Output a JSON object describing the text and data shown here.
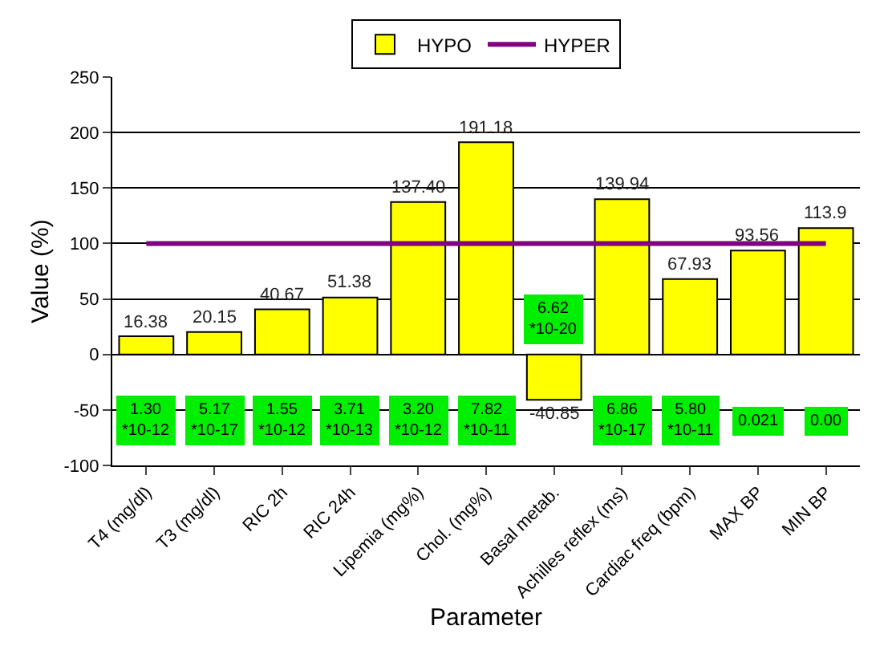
{
  "chart_data": {
    "type": "bar",
    "xlabel": "Parameter",
    "ylabel": "Value (%)",
    "categories": [
      "T4 (mg/dl)",
      "T3 (mg/dl)",
      "RIC 2h",
      "RIC 24h",
      "Lipemia (mg%)",
      "Chol. (mg%)",
      "Basal metab.",
      "Achilles reflex (ms)",
      "Cardiac freq (bpm)",
      "MAX BP",
      "MIN BP"
    ],
    "series": [
      {
        "name": "HYPO",
        "color": "#ffff00",
        "values": [
          16.38,
          20.15,
          40.67,
          51.38,
          137.4,
          191.18,
          -40.85,
          139.94,
          67.93,
          93.56,
          113.9
        ],
        "value_labels": [
          "16.38",
          "20.15",
          "40.67",
          "51.38",
          "137.40",
          "191.18",
          "-40.85",
          "139.94",
          "67.93",
          "93.56",
          "113.9"
        ]
      },
      {
        "name": "HYPER",
        "type": "line",
        "color": "#800080",
        "values": [
          100,
          100,
          100,
          100,
          100,
          100,
          100,
          100,
          100,
          100,
          100
        ]
      }
    ],
    "annotations": [
      {
        "text": "1.30 *10-12",
        "x": "T4 (mg/dl)",
        "y": -60
      },
      {
        "text": "5.17 *10-17",
        "x": "T3 (mg/dl)",
        "y": -60
      },
      {
        "text": "1.55 *10-12",
        "x": "RIC 2h",
        "y": -60
      },
      {
        "text": "3.71 *10-13",
        "x": "RIC 24h",
        "y": -60
      },
      {
        "text": "3.20 *10-12",
        "x": "Lipemia (mg%)",
        "y": -60
      },
      {
        "text": "7.82 *10-11",
        "x": "Chol. (mg%)",
        "y": -60
      },
      {
        "text": "6.62 *10-20",
        "x": "Basal metab.",
        "y": 32
      },
      {
        "text": "6.86 *10-17",
        "x": "Achilles reflex (ms)",
        "y": -60
      },
      {
        "text": "5.80 *10-11",
        "x": "Cardiac freq (bpm)",
        "y": -60
      },
      {
        "text": "0.021",
        "x": "MAX BP",
        "y": -60
      },
      {
        "text": "0.00",
        "x": "MIN BP",
        "y": -60
      }
    ],
    "ylim": [
      -100,
      250
    ],
    "yticks": [
      -100,
      -50,
      0,
      50,
      100,
      150,
      200,
      250
    ],
    "grid": "y",
    "legend": "top",
    "marker": "none",
    "line_style": "solid"
  }
}
